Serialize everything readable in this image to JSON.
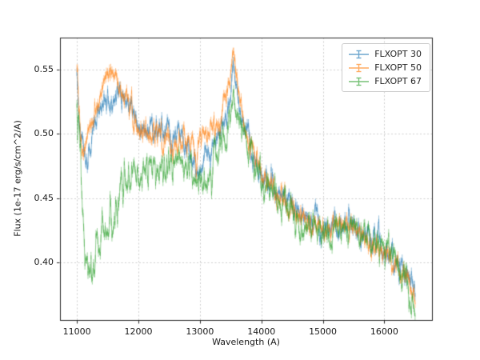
{
  "chart_data": {
    "type": "line",
    "title": "",
    "xlabel": "Wavelength (A)",
    "ylabel": "Flux (1e-17 erg/s/cm^2/A)",
    "xlim": [
      10725,
      16775
    ],
    "ylim": [
      0.355,
      0.575
    ],
    "xticks": [
      11000,
      12000,
      13000,
      14000,
      15000,
      16000
    ],
    "xtick_labels": [
      "11000",
      "12000",
      "13000",
      "14000",
      "15000",
      "16000"
    ],
    "yticks": [
      0.4,
      0.45,
      0.5,
      0.55
    ],
    "ytick_labels": [
      "0.40",
      "0.45",
      "0.50",
      "0.55"
    ],
    "grid": true,
    "legend_position": "upper right",
    "sample_step": 10,
    "noise_seed": 1337,
    "series": [
      {
        "name": "FLXOPT 30",
        "color": "#1f77b4",
        "alpha": 0.5,
        "noise": 0.0045,
        "errorbar": 0.003,
        "anchors": [
          [
            11000,
            0.545
          ],
          [
            11060,
            0.5
          ],
          [
            11150,
            0.478
          ],
          [
            11250,
            0.5
          ],
          [
            11350,
            0.518
          ],
          [
            11450,
            0.528
          ],
          [
            11550,
            0.522
          ],
          [
            11650,
            0.535
          ],
          [
            11750,
            0.528
          ],
          [
            11850,
            0.52
          ],
          [
            11950,
            0.512
          ],
          [
            12050,
            0.505
          ],
          [
            12150,
            0.5
          ],
          [
            12250,
            0.505
          ],
          [
            12350,
            0.51
          ],
          [
            12450,
            0.505
          ],
          [
            12550,
            0.5
          ],
          [
            12650,
            0.497
          ],
          [
            12750,
            0.49
          ],
          [
            12850,
            0.482
          ],
          [
            12950,
            0.476
          ],
          [
            13050,
            0.474
          ],
          [
            13150,
            0.48
          ],
          [
            13250,
            0.49
          ],
          [
            13350,
            0.5
          ],
          [
            13450,
            0.517
          ],
          [
            13550,
            0.557
          ],
          [
            13650,
            0.52
          ],
          [
            13750,
            0.5
          ],
          [
            13850,
            0.483
          ],
          [
            13950,
            0.47
          ],
          [
            14100,
            0.462
          ],
          [
            14250,
            0.455
          ],
          [
            14400,
            0.45
          ],
          [
            14600,
            0.44
          ],
          [
            14800,
            0.432
          ],
          [
            15000,
            0.428
          ],
          [
            15200,
            0.428
          ],
          [
            15400,
            0.43
          ],
          [
            15600,
            0.424
          ],
          [
            15800,
            0.416
          ],
          [
            16000,
            0.41
          ],
          [
            16200,
            0.401
          ],
          [
            16350,
            0.392
          ],
          [
            16450,
            0.382
          ],
          [
            16500,
            0.376
          ]
        ]
      },
      {
        "name": "FLXOPT 50",
        "color": "#ff7f0e",
        "alpha": 0.5,
        "noise": 0.0045,
        "errorbar": 0.003,
        "anchors": [
          [
            11000,
            0.55
          ],
          [
            11080,
            0.483
          ],
          [
            11160,
            0.5
          ],
          [
            11250,
            0.51
          ],
          [
            11350,
            0.522
          ],
          [
            11450,
            0.542
          ],
          [
            11550,
            0.553
          ],
          [
            11650,
            0.545
          ],
          [
            11750,
            0.532
          ],
          [
            11850,
            0.52
          ],
          [
            11950,
            0.51
          ],
          [
            12050,
            0.502
          ],
          [
            12150,
            0.498
          ],
          [
            12250,
            0.5
          ],
          [
            12350,
            0.5
          ],
          [
            12450,
            0.496
          ],
          [
            12550,
            0.492
          ],
          [
            12650,
            0.49
          ],
          [
            12750,
            0.492
          ],
          [
            12850,
            0.49
          ],
          [
            12950,
            0.49
          ],
          [
            13050,
            0.494
          ],
          [
            13150,
            0.5
          ],
          [
            13250,
            0.506
          ],
          [
            13350,
            0.514
          ],
          [
            13450,
            0.528
          ],
          [
            13550,
            0.562
          ],
          [
            13650,
            0.524
          ],
          [
            13750,
            0.502
          ],
          [
            13850,
            0.486
          ],
          [
            13950,
            0.473
          ],
          [
            14100,
            0.464
          ],
          [
            14250,
            0.453
          ],
          [
            14400,
            0.447
          ],
          [
            14600,
            0.438
          ],
          [
            14800,
            0.429
          ],
          [
            15000,
            0.425
          ],
          [
            15200,
            0.427
          ],
          [
            15400,
            0.43
          ],
          [
            15600,
            0.421
          ],
          [
            15800,
            0.413
          ],
          [
            16000,
            0.406
          ],
          [
            16200,
            0.398
          ],
          [
            16350,
            0.389
          ],
          [
            16450,
            0.379
          ],
          [
            16500,
            0.371
          ]
        ]
      },
      {
        "name": "FLXOPT 67",
        "color": "#2ca02c",
        "alpha": 0.5,
        "noise": 0.006,
        "errorbar": 0.003,
        "noise_boost": {
          "below": 11900,
          "factor": 1.7
        },
        "anchors": [
          [
            11000,
            0.52
          ],
          [
            11060,
            0.46
          ],
          [
            11130,
            0.408
          ],
          [
            11200,
            0.39
          ],
          [
            11300,
            0.4
          ],
          [
            11400,
            0.414
          ],
          [
            11500,
            0.428
          ],
          [
            11600,
            0.44
          ],
          [
            11700,
            0.446
          ],
          [
            11800,
            0.455
          ],
          [
            11900,
            0.463
          ],
          [
            12000,
            0.466
          ],
          [
            12100,
            0.47
          ],
          [
            12200,
            0.472
          ],
          [
            12300,
            0.47
          ],
          [
            12400,
            0.475
          ],
          [
            12500,
            0.478
          ],
          [
            12600,
            0.48
          ],
          [
            12700,
            0.479
          ],
          [
            12800,
            0.474
          ],
          [
            12900,
            0.467
          ],
          [
            13000,
            0.461
          ],
          [
            13100,
            0.463
          ],
          [
            13200,
            0.471
          ],
          [
            13300,
            0.485
          ],
          [
            13400,
            0.5
          ],
          [
            13550,
            0.528
          ],
          [
            13650,
            0.51
          ],
          [
            13750,
            0.492
          ],
          [
            13850,
            0.477
          ],
          [
            13950,
            0.466
          ],
          [
            14100,
            0.459
          ],
          [
            14250,
            0.451
          ],
          [
            14400,
            0.444
          ],
          [
            14600,
            0.434
          ],
          [
            14800,
            0.425
          ],
          [
            15000,
            0.421
          ],
          [
            15200,
            0.423
          ],
          [
            15400,
            0.427
          ],
          [
            15600,
            0.42
          ],
          [
            15800,
            0.413
          ],
          [
            16000,
            0.408
          ],
          [
            16200,
            0.398
          ],
          [
            16350,
            0.388
          ],
          [
            16450,
            0.377
          ],
          [
            16500,
            0.37
          ]
        ]
      }
    ]
  }
}
